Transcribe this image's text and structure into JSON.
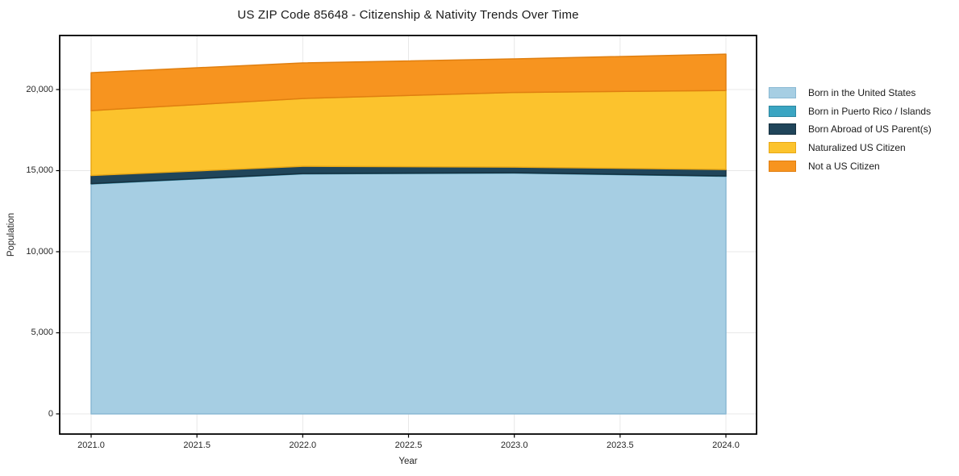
{
  "chart_data": {
    "type": "area",
    "stacked": true,
    "title": "US ZIP Code 85648 - Citizenship & Nativity Trends Over Time",
    "xlabel": "Year",
    "ylabel": "Population",
    "x": [
      2021,
      2022,
      2023,
      2024
    ],
    "series": [
      {
        "name": "Born in the United States",
        "color": "#a6cee3",
        "edge": "#8ab9d4",
        "values": [
          14180,
          14800,
          14850,
          14650
        ]
      },
      {
        "name": "Born in Puerto Rico / Islands",
        "color": "#3aa5c2",
        "edge": "#2e87a0",
        "values": [
          20,
          20,
          20,
          20
        ]
      },
      {
        "name": "Born Abroad of US Parent(s)",
        "color": "#20455a",
        "edge": "#16303f",
        "values": [
          500,
          450,
          350,
          400
        ]
      },
      {
        "name": "Naturalized US Citizen",
        "color": "#fcc32d",
        "edge": "#e8a816",
        "values": [
          4000,
          4180,
          4600,
          4875
        ]
      },
      {
        "name": "Not a US Citizen",
        "color": "#f7941f",
        "edge": "#e07f10",
        "values": [
          2340,
          2190,
          2070,
          2240
        ]
      }
    ],
    "totals": [
      21040,
      21640,
      21890,
      22185
    ],
    "xticks": [
      2021.0,
      2021.5,
      2022.0,
      2022.5,
      2023.0,
      2023.5,
      2024.0
    ],
    "xtick_labels": [
      "2021.0",
      "2021.5",
      "2022.0",
      "2022.5",
      "2023.0",
      "2023.5",
      "2024.0"
    ],
    "yticks": [
      0,
      5000,
      10000,
      15000,
      20000
    ],
    "ytick_labels": [
      "0",
      "5,000",
      "10,000",
      "15,000",
      "20,000"
    ],
    "xlim": [
      2020.85,
      2024.15
    ],
    "ylim": [
      -1250,
      23350
    ],
    "grid": true,
    "legend_position": "right",
    "background": "#ffffff",
    "grid_color": "#e8e8e8",
    "spine_color": "#000000",
    "tick_color": "#000000"
  }
}
